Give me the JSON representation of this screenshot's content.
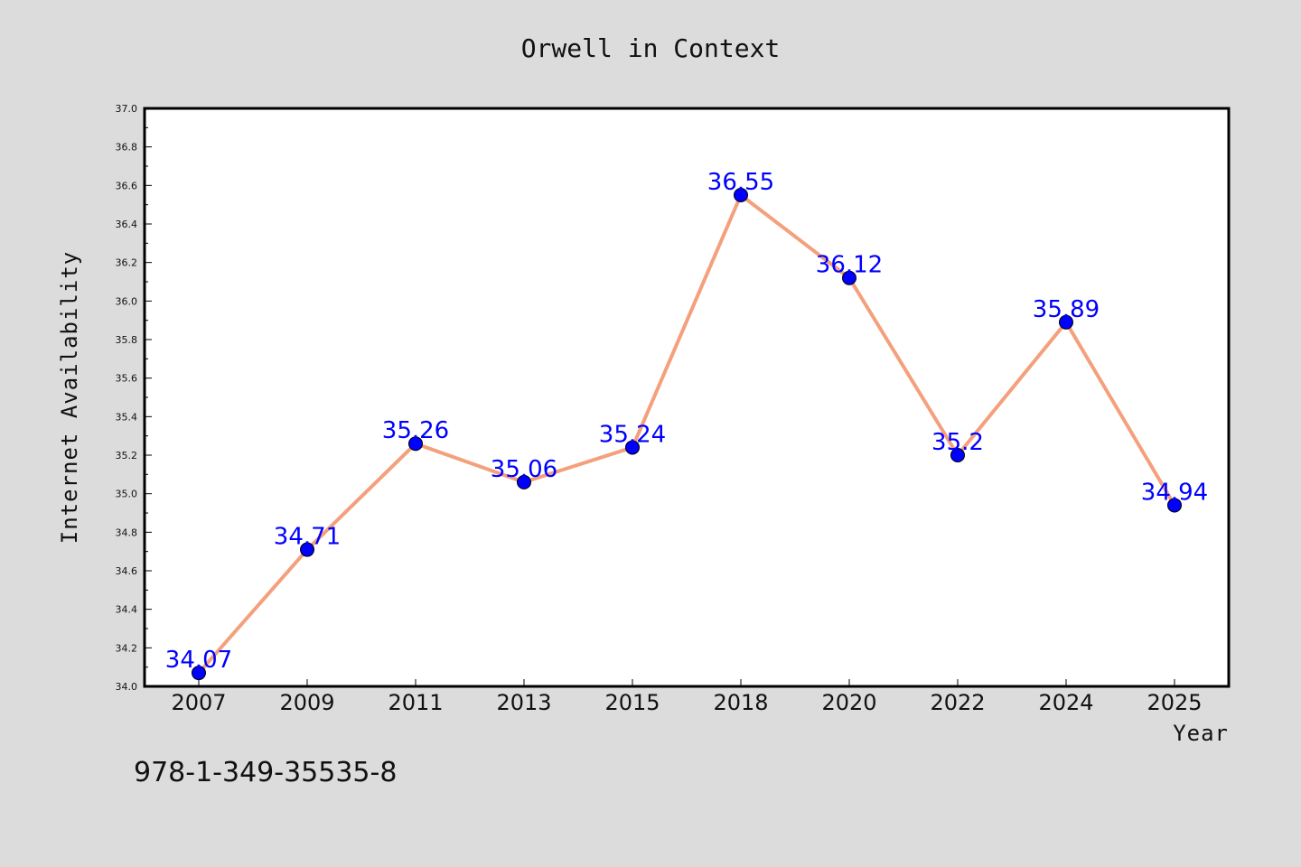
{
  "chart_data": {
    "type": "line",
    "title": "Orwell in Context",
    "xlabel": "Year",
    "ylabel": "Internet Availability",
    "categories": [
      "2007",
      "2009",
      "2011",
      "2013",
      "2015",
      "2018",
      "2020",
      "2022",
      "2024",
      "2025"
    ],
    "series": [
      {
        "values": [
          34.07,
          34.71,
          35.26,
          35.06,
          35.24,
          36.55,
          36.12,
          35.2,
          35.89,
          34.94
        ],
        "data_labels": [
          "34.07",
          "34.71",
          "35.26",
          "35.06",
          "35.24",
          "36.55",
          "36.12",
          "35.2",
          "35.89",
          "34.94"
        ]
      }
    ],
    "ylim": [
      34.0,
      37.0
    ],
    "yticks": [
      "34.0",
      "34.2",
      "34.4",
      "34.6",
      "34.8",
      "35.0",
      "35.2",
      "35.4",
      "35.6",
      "35.8",
      "36.0",
      "36.2",
      "36.4",
      "36.6",
      "36.8",
      "37.0"
    ],
    "grid": false,
    "line_color": "#f4a07c",
    "marker_color": "#0000ff",
    "label_color": "#0000ff",
    "background_color": "#dcdcdc",
    "plot_background": "#ffffff"
  },
  "annotation": {
    "isbn": "978-1-349-35535-8"
  }
}
